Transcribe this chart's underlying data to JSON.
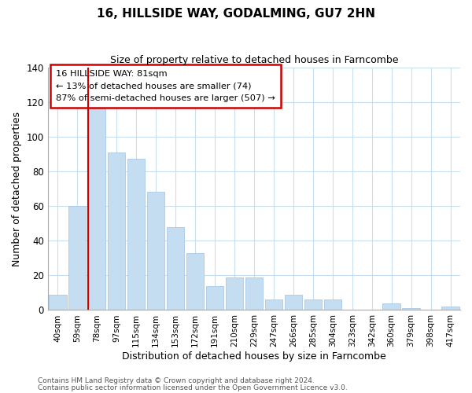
{
  "title": "16, HILLSIDE WAY, GODALMING, GU7 2HN",
  "subtitle": "Size of property relative to detached houses in Farncombe",
  "xlabel": "Distribution of detached houses by size in Farncombe",
  "ylabel": "Number of detached properties",
  "footer_line1": "Contains HM Land Registry data © Crown copyright and database right 2024.",
  "footer_line2": "Contains public sector information licensed under the Open Government Licence v3.0.",
  "bar_labels": [
    "40sqm",
    "59sqm",
    "78sqm",
    "97sqm",
    "115sqm",
    "134sqm",
    "153sqm",
    "172sqm",
    "191sqm",
    "210sqm",
    "229sqm",
    "247sqm",
    "266sqm",
    "285sqm",
    "304sqm",
    "323sqm",
    "342sqm",
    "360sqm",
    "379sqm",
    "398sqm",
    "417sqm"
  ],
  "bar_values": [
    9,
    60,
    117,
    91,
    87,
    68,
    48,
    33,
    14,
    19,
    19,
    6,
    9,
    6,
    6,
    0,
    0,
    4,
    1,
    0,
    2
  ],
  "bar_color": "#c5ddf0",
  "bar_edge_color": "#a8c8e8",
  "highlight_bar_index": 2,
  "highlight_color": "#cc0000",
  "ylim": [
    0,
    140
  ],
  "yticks": [
    0,
    20,
    40,
    60,
    80,
    100,
    120,
    140
  ],
  "annotation_title": "16 HILLSIDE WAY: 81sqm",
  "annotation_line1": "← 13% of detached houses are smaller (74)",
  "annotation_line2": "87% of semi-detached houses are larger (507) →",
  "background_color": "#ffffff",
  "grid_color": "#c8dff0"
}
